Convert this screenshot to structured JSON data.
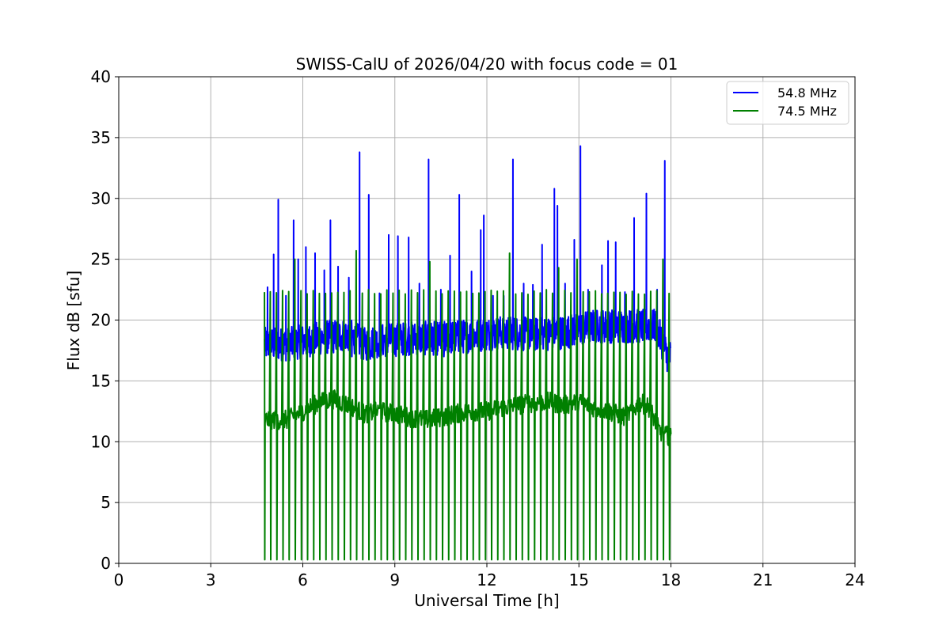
{
  "chart_data": {
    "type": "line",
    "title": "SWISS-CalU of 2026/04/20 with focus code = 01",
    "xlabel": "Universal Time [h]",
    "ylabel": "Flux dB [sfu]",
    "xlim": [
      0,
      24
    ],
    "ylim": [
      0,
      40
    ],
    "xticks": [
      0,
      3,
      6,
      9,
      12,
      15,
      18,
      21,
      24
    ],
    "yticks": [
      0,
      5,
      10,
      15,
      20,
      25,
      30,
      35,
      40
    ],
    "grid": true,
    "legend_position": "top-right",
    "time_range": [
      4.75,
      18.0
    ],
    "series": [
      {
        "name": "54.8 MHz",
        "legend_label": "  54.8 MHz",
        "color": "#0000ff",
        "baseline": [
          [
            4.75,
            18.0
          ],
          [
            5.5,
            18.0
          ],
          [
            6.5,
            18.5
          ],
          [
            7.5,
            18.8
          ],
          [
            8.0,
            18.0
          ],
          [
            8.5,
            18.3
          ],
          [
            9.5,
            18.5
          ],
          [
            10.5,
            18.5
          ],
          [
            11.5,
            18.7
          ],
          [
            12.5,
            19.0
          ],
          [
            13.5,
            18.8
          ],
          [
            14.5,
            19.0
          ],
          [
            15.5,
            19.5
          ],
          [
            16.5,
            19.5
          ],
          [
            17.5,
            19.5
          ],
          [
            17.9,
            17.0
          ],
          [
            18.0,
            17.0
          ]
        ],
        "peaks": [
          [
            4.85,
            22.7
          ],
          [
            5.05,
            25.4
          ],
          [
            5.2,
            29.9
          ],
          [
            5.45,
            22.0
          ],
          [
            5.7,
            28.2
          ],
          [
            5.85,
            25.0
          ],
          [
            6.1,
            26.0
          ],
          [
            6.4,
            25.5
          ],
          [
            6.7,
            24.1
          ],
          [
            6.9,
            28.2
          ],
          [
            7.15,
            24.4
          ],
          [
            7.5,
            23.5
          ],
          [
            7.85,
            33.8
          ],
          [
            8.15,
            30.3
          ],
          [
            8.5,
            22.2
          ],
          [
            8.8,
            27.0
          ],
          [
            9.1,
            26.9
          ],
          [
            9.45,
            26.8
          ],
          [
            9.8,
            23.0
          ],
          [
            10.1,
            33.2
          ],
          [
            10.5,
            22.5
          ],
          [
            10.8,
            25.3
          ],
          [
            11.1,
            30.3
          ],
          [
            11.5,
            24.0
          ],
          [
            11.8,
            27.4
          ],
          [
            11.9,
            28.6
          ],
          [
            12.2,
            22.0
          ],
          [
            12.55,
            22.0
          ],
          [
            12.85,
            33.2
          ],
          [
            13.2,
            23.0
          ],
          [
            13.5,
            22.9
          ],
          [
            13.8,
            26.2
          ],
          [
            14.2,
            30.8
          ],
          [
            14.3,
            29.4
          ],
          [
            14.55,
            23.0
          ],
          [
            14.85,
            26.6
          ],
          [
            15.05,
            34.3
          ],
          [
            15.3,
            22.5
          ],
          [
            15.75,
            24.5
          ],
          [
            15.95,
            26.5
          ],
          [
            16.2,
            26.4
          ],
          [
            16.5,
            22.3
          ],
          [
            16.8,
            28.4
          ],
          [
            17.2,
            30.4
          ],
          [
            17.55,
            22.5
          ],
          [
            17.8,
            33.1
          ]
        ],
        "peak_dips": [
          [
            7.6,
            17.0
          ],
          [
            8.2,
            16.8
          ],
          [
            9.3,
            17.2
          ],
          [
            10.6,
            17.0
          ],
          [
            17.85,
            16.5
          ]
        ]
      },
      {
        "name": "74.5 MHz",
        "legend_label": "74.5 MHz",
        "color": "#008000",
        "baseline": [
          [
            4.75,
            11.8
          ],
          [
            5.5,
            11.8
          ],
          [
            6.0,
            12.5
          ],
          [
            6.5,
            13.2
          ],
          [
            7.0,
            13.5
          ],
          [
            7.5,
            13.0
          ],
          [
            8.0,
            12.3
          ],
          [
            8.5,
            12.5
          ],
          [
            9.0,
            12.3
          ],
          [
            9.5,
            12.0
          ],
          [
            10.0,
            11.8
          ],
          [
            10.5,
            12.0
          ],
          [
            11.0,
            12.3
          ],
          [
            11.5,
            12.5
          ],
          [
            12.0,
            12.5
          ],
          [
            12.5,
            12.8
          ],
          [
            13.0,
            13.0
          ],
          [
            13.5,
            13.2
          ],
          [
            14.0,
            13.3
          ],
          [
            14.5,
            13.0
          ],
          [
            15.0,
            13.3
          ],
          [
            15.5,
            12.8
          ],
          [
            16.0,
            12.5
          ],
          [
            16.5,
            12.0
          ],
          [
            17.0,
            13.2
          ],
          [
            17.3,
            12.8
          ],
          [
            17.6,
            11.0
          ],
          [
            17.8,
            10.5
          ],
          [
            18.0,
            10.5
          ]
        ],
        "pulse_period_h": 0.2,
        "pulse_top": 22.3,
        "pulse_bottom": 0.3,
        "tall_pulses": [
          [
            5.7,
            25.0
          ],
          [
            7.85,
            25.7
          ],
          [
            10.15,
            24.8
          ],
          [
            12.85,
            25.5
          ],
          [
            14.3,
            24.3
          ],
          [
            15.05,
            25.0
          ],
          [
            17.8,
            25.0
          ]
        ]
      }
    ]
  }
}
